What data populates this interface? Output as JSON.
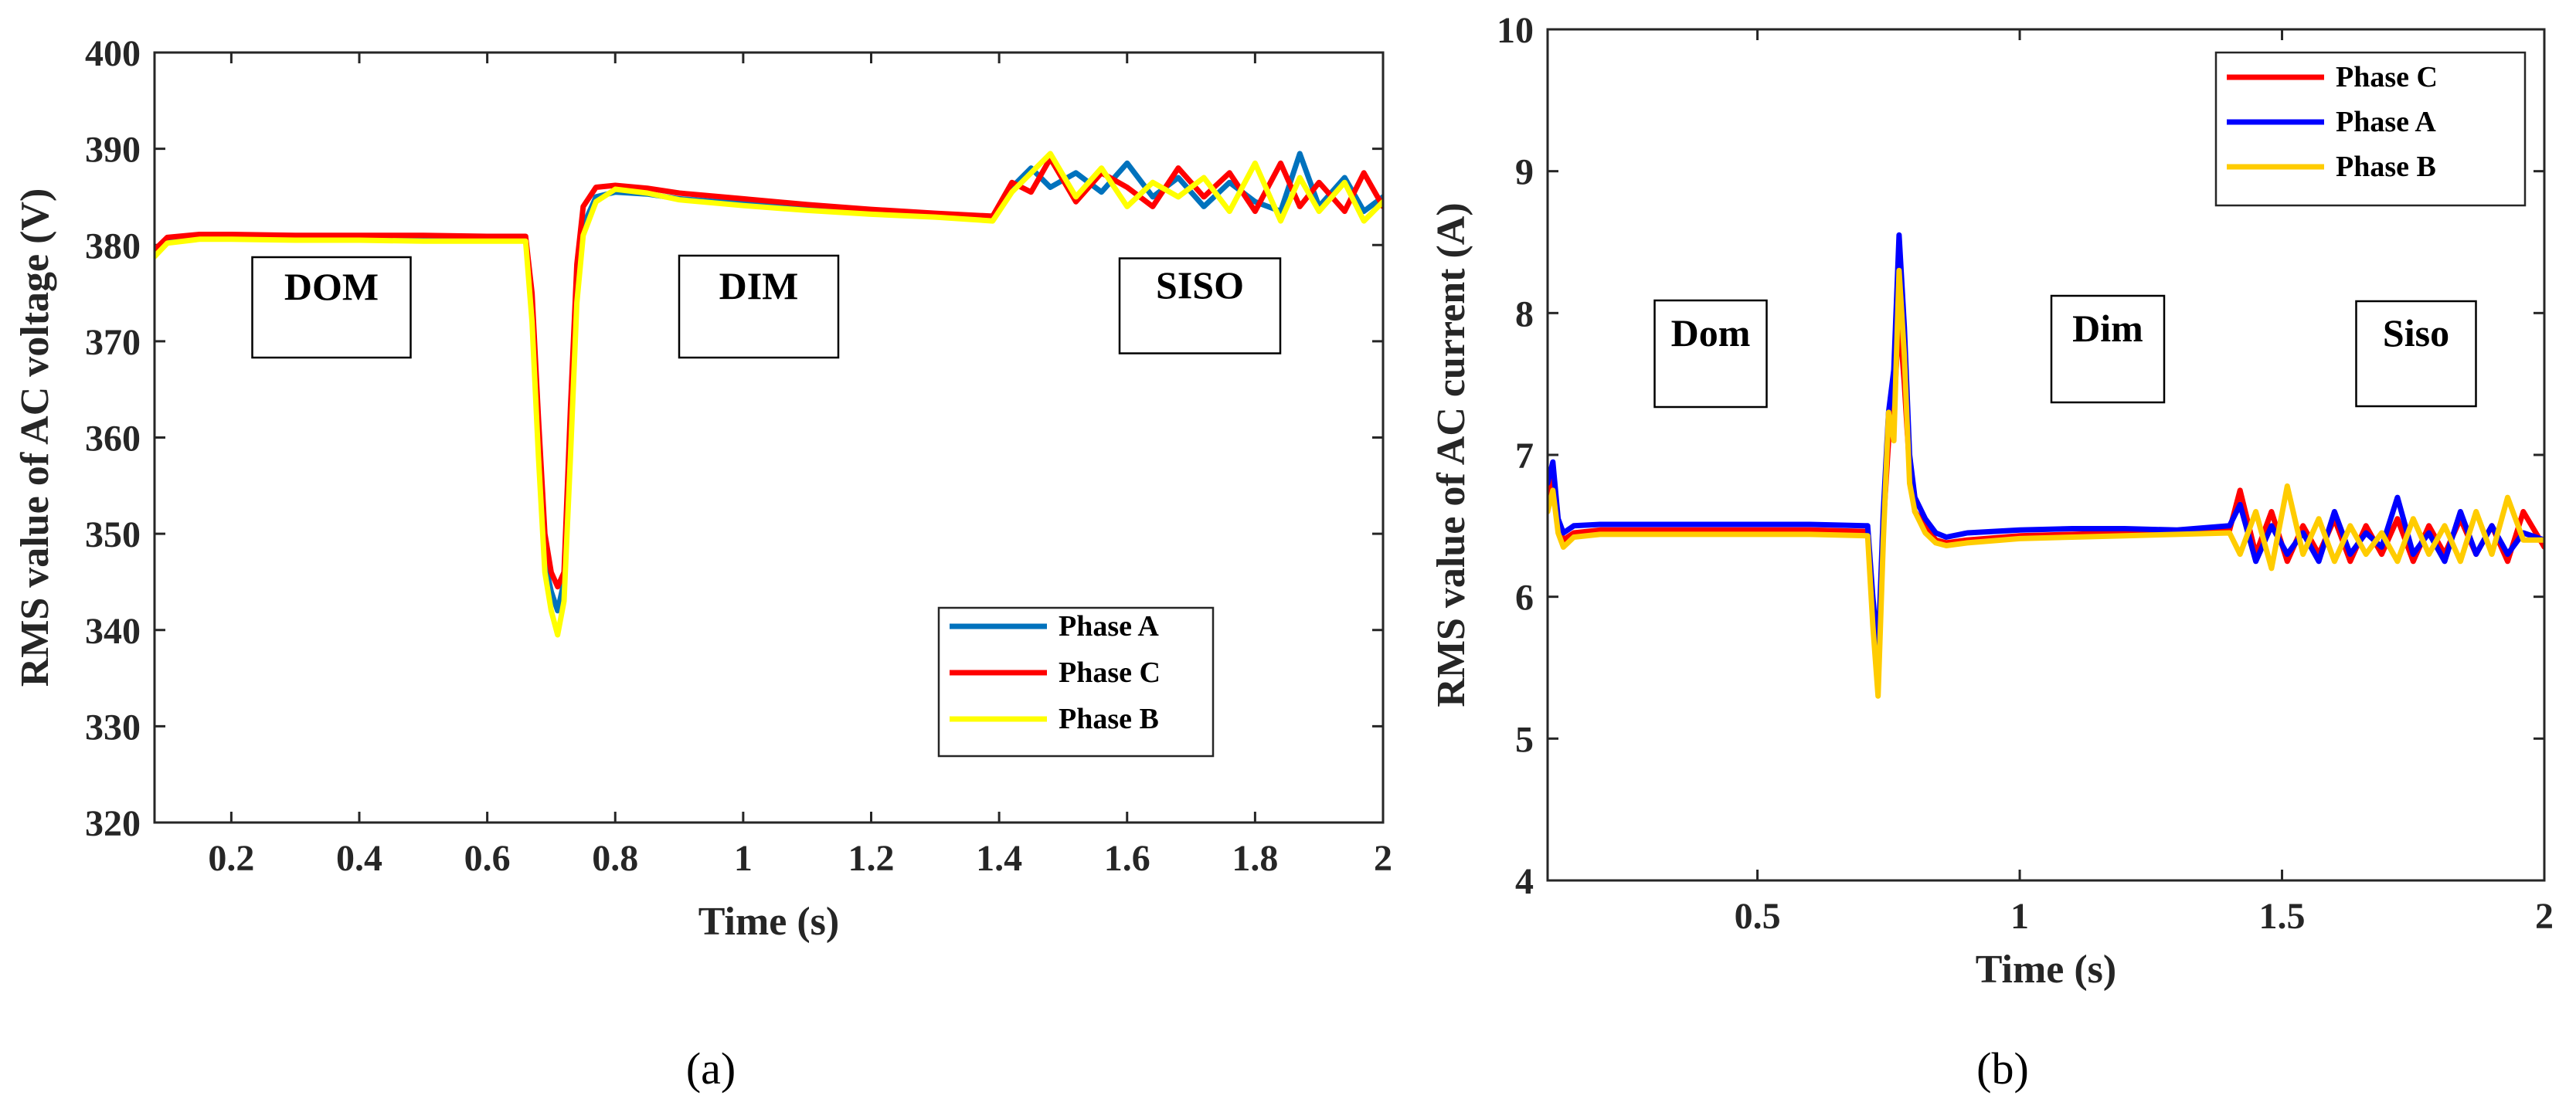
{
  "chart_data": [
    {
      "type": "line",
      "caption": "(a)",
      "xlabel": "Time (s)",
      "ylabel": "RMS value of AC voltage (V)",
      "xlim": [
        0.08,
        2
      ],
      "ylim": [
        320,
        400
      ],
      "xticks": [
        0.2,
        0.4,
        0.6,
        0.8,
        1,
        1.2,
        1.4,
        1.6,
        1.8,
        2
      ],
      "yticks": [
        320,
        330,
        340,
        350,
        360,
        370,
        380,
        390,
        400
      ],
      "legend_position": "bottom-right",
      "legend": [
        "Phase A",
        "Phase C",
        "Phase B"
      ],
      "annotations": [
        {
          "text": "DOM",
          "x": 0.26,
          "y": 372
        },
        {
          "text": "DIM",
          "x": 1.02,
          "y": 373
        },
        {
          "text": "SISO",
          "x": 1.75,
          "y": 374
        }
      ],
      "series": [
        {
          "name": "Phase A",
          "color": "#0072BD",
          "x": [
            0.08,
            0.1,
            0.15,
            0.2,
            0.3,
            0.4,
            0.5,
            0.6,
            0.66,
            0.67,
            0.68,
            0.69,
            0.7,
            0.71,
            0.72,
            0.73,
            0.74,
            0.75,
            0.77,
            0.8,
            0.85,
            0.9,
            1.0,
            1.1,
            1.2,
            1.3,
            1.39,
            1.42,
            1.45,
            1.48,
            1.52,
            1.56,
            1.6,
            1.64,
            1.68,
            1.72,
            1.76,
            1.8,
            1.84,
            1.87,
            1.9,
            1.94,
            1.97,
            2.0
          ],
          "y": [
            379.2,
            380.5,
            380.9,
            380.9,
            380.8,
            380.8,
            380.7,
            380.7,
            380.7,
            373,
            360,
            347,
            344,
            342,
            345,
            360,
            376,
            382,
            385,
            385.5,
            385.3,
            384.8,
            384.3,
            383.9,
            383.4,
            383.1,
            382.8,
            386,
            388,
            386,
            387.5,
            385.5,
            388.5,
            385,
            387,
            384,
            386.5,
            384.5,
            383.5,
            389.5,
            384,
            387,
            383.5,
            385
          ]
        },
        {
          "name": "Phase C",
          "color": "#FF0000",
          "x": [
            0.08,
            0.1,
            0.15,
            0.2,
            0.3,
            0.4,
            0.5,
            0.6,
            0.66,
            0.67,
            0.68,
            0.69,
            0.7,
            0.71,
            0.72,
            0.73,
            0.74,
            0.75,
            0.77,
            0.8,
            0.85,
            0.9,
            1.0,
            1.1,
            1.2,
            1.3,
            1.39,
            1.42,
            1.45,
            1.48,
            1.52,
            1.56,
            1.6,
            1.64,
            1.68,
            1.72,
            1.76,
            1.8,
            1.84,
            1.87,
            1.9,
            1.94,
            1.97,
            2.0
          ],
          "y": [
            379.5,
            380.8,
            381.1,
            381.1,
            381.0,
            381.0,
            381.0,
            380.9,
            380.9,
            375,
            362,
            350,
            346,
            344.5,
            346,
            363,
            378,
            384,
            386,
            386.2,
            385.9,
            385.4,
            384.8,
            384.2,
            383.7,
            383.3,
            383.0,
            386.5,
            385.5,
            389,
            384.5,
            387.5,
            386,
            384,
            388,
            385,
            387.5,
            383.5,
            388.5,
            384,
            386.5,
            383.5,
            387.5,
            384
          ]
        },
        {
          "name": "Phase B",
          "color": "#FFFF00",
          "x": [
            0.08,
            0.1,
            0.15,
            0.2,
            0.3,
            0.4,
            0.5,
            0.6,
            0.66,
            0.67,
            0.68,
            0.69,
            0.7,
            0.71,
            0.72,
            0.73,
            0.74,
            0.75,
            0.77,
            0.8,
            0.85,
            0.9,
            1.0,
            1.1,
            1.2,
            1.3,
            1.39,
            1.42,
            1.45,
            1.48,
            1.52,
            1.56,
            1.6,
            1.64,
            1.68,
            1.72,
            1.76,
            1.8,
            1.84,
            1.87,
            1.9,
            1.94,
            1.97,
            2.0
          ],
          "y": [
            378.8,
            380.2,
            380.6,
            380.6,
            380.5,
            380.5,
            380.4,
            380.4,
            380.4,
            372,
            358,
            346,
            342,
            339.5,
            343,
            358,
            374,
            381,
            384.5,
            385.8,
            385.4,
            384.7,
            384.1,
            383.6,
            383.2,
            382.9,
            382.5,
            385.5,
            387.5,
            389.5,
            385,
            388,
            384,
            386.5,
            385,
            387,
            383.5,
            388.5,
            382.5,
            387,
            383.5,
            386.5,
            382.5,
            384.5
          ]
        }
      ]
    },
    {
      "type": "line",
      "caption": "(b)",
      "xlabel": "Time (s)",
      "ylabel": "RMS value of AC current (A)",
      "xlim": [
        0.1,
        2
      ],
      "ylim": [
        4,
        10
      ],
      "xticks": [
        0.5,
        1,
        1.5,
        2
      ],
      "yticks": [
        4,
        5,
        6,
        7,
        8,
        9,
        10
      ],
      "legend_position": "top-right",
      "legend": [
        "Phase C",
        "Phase A",
        "Phase B"
      ],
      "annotations": [
        {
          "text": "Dom",
          "x": 0.32,
          "y": 7.8
        },
        {
          "text": "Dim",
          "x": 1.08,
          "y": 7.88
        },
        {
          "text": "Siso",
          "x": 1.76,
          "y": 7.8
        }
      ],
      "series": [
        {
          "name": "Phase C",
          "color": "#FF0000",
          "x": [
            0.1,
            0.11,
            0.12,
            0.13,
            0.15,
            0.2,
            0.4,
            0.6,
            0.71,
            0.72,
            0.73,
            0.74,
            0.75,
            0.76,
            0.77,
            0.78,
            0.79,
            0.8,
            0.82,
            0.84,
            0.86,
            0.9,
            1.0,
            1.1,
            1.2,
            1.3,
            1.4,
            1.42,
            1.45,
            1.48,
            1.51,
            1.54,
            1.57,
            1.6,
            1.63,
            1.66,
            1.69,
            1.72,
            1.75,
            1.78,
            1.81,
            1.84,
            1.87,
            1.9,
            1.93,
            1.96,
            2.0
          ],
          "y": [
            6.7,
            6.85,
            6.5,
            6.4,
            6.45,
            6.47,
            6.47,
            6.47,
            6.46,
            5.9,
            5.4,
            6.5,
            7.1,
            7.3,
            8.0,
            7.5,
            6.9,
            6.6,
            6.5,
            6.4,
            6.38,
            6.4,
            6.43,
            6.44,
            6.45,
            6.45,
            6.47,
            6.75,
            6.3,
            6.6,
            6.25,
            6.5,
            6.3,
            6.55,
            6.25,
            6.5,
            6.3,
            6.55,
            6.25,
            6.5,
            6.3,
            6.55,
            6.3,
            6.5,
            6.25,
            6.6,
            6.35
          ]
        },
        {
          "name": "Phase A",
          "color": "#0000FF",
          "x": [
            0.1,
            0.11,
            0.12,
            0.13,
            0.15,
            0.2,
            0.4,
            0.6,
            0.71,
            0.72,
            0.73,
            0.74,
            0.75,
            0.76,
            0.77,
            0.78,
            0.79,
            0.8,
            0.82,
            0.84,
            0.86,
            0.9,
            1.0,
            1.1,
            1.2,
            1.3,
            1.4,
            1.42,
            1.45,
            1.48,
            1.51,
            1.54,
            1.57,
            1.6,
            1.63,
            1.66,
            1.69,
            1.72,
            1.75,
            1.78,
            1.81,
            1.84,
            1.87,
            1.9,
            1.93,
            1.96,
            2.0
          ],
          "y": [
            6.8,
            6.95,
            6.55,
            6.45,
            6.5,
            6.51,
            6.51,
            6.51,
            6.5,
            6.0,
            5.6,
            6.6,
            7.3,
            7.6,
            8.55,
            7.9,
            7.0,
            6.7,
            6.55,
            6.45,
            6.42,
            6.45,
            6.47,
            6.48,
            6.48,
            6.47,
            6.5,
            6.65,
            6.25,
            6.5,
            6.3,
            6.45,
            6.25,
            6.6,
            6.3,
            6.45,
            6.35,
            6.7,
            6.3,
            6.45,
            6.25,
            6.6,
            6.3,
            6.5,
            6.3,
            6.45,
            6.4
          ]
        },
        {
          "name": "Phase B",
          "color": "#FFCC00",
          "x": [
            0.1,
            0.11,
            0.12,
            0.13,
            0.15,
            0.2,
            0.4,
            0.6,
            0.71,
            0.72,
            0.73,
            0.74,
            0.75,
            0.76,
            0.77,
            0.78,
            0.79,
            0.8,
            0.82,
            0.84,
            0.86,
            0.9,
            1.0,
            1.1,
            1.2,
            1.3,
            1.4,
            1.42,
            1.45,
            1.48,
            1.51,
            1.54,
            1.57,
            1.6,
            1.63,
            1.66,
            1.69,
            1.72,
            1.75,
            1.78,
            1.81,
            1.84,
            1.87,
            1.9,
            1.93,
            1.96,
            2.0
          ],
          "y": [
            6.6,
            6.75,
            6.45,
            6.35,
            6.42,
            6.44,
            6.44,
            6.44,
            6.43,
            5.8,
            5.3,
            6.4,
            7.3,
            7.1,
            8.3,
            7.7,
            6.8,
            6.6,
            6.45,
            6.38,
            6.36,
            6.38,
            6.41,
            6.42,
            6.43,
            6.44,
            6.45,
            6.3,
            6.6,
            6.2,
            6.78,
            6.3,
            6.55,
            6.25,
            6.5,
            6.3,
            6.45,
            6.25,
            6.55,
            6.3,
            6.5,
            6.25,
            6.6,
            6.3,
            6.7,
            6.4,
            6.4
          ]
        }
      ]
    }
  ]
}
